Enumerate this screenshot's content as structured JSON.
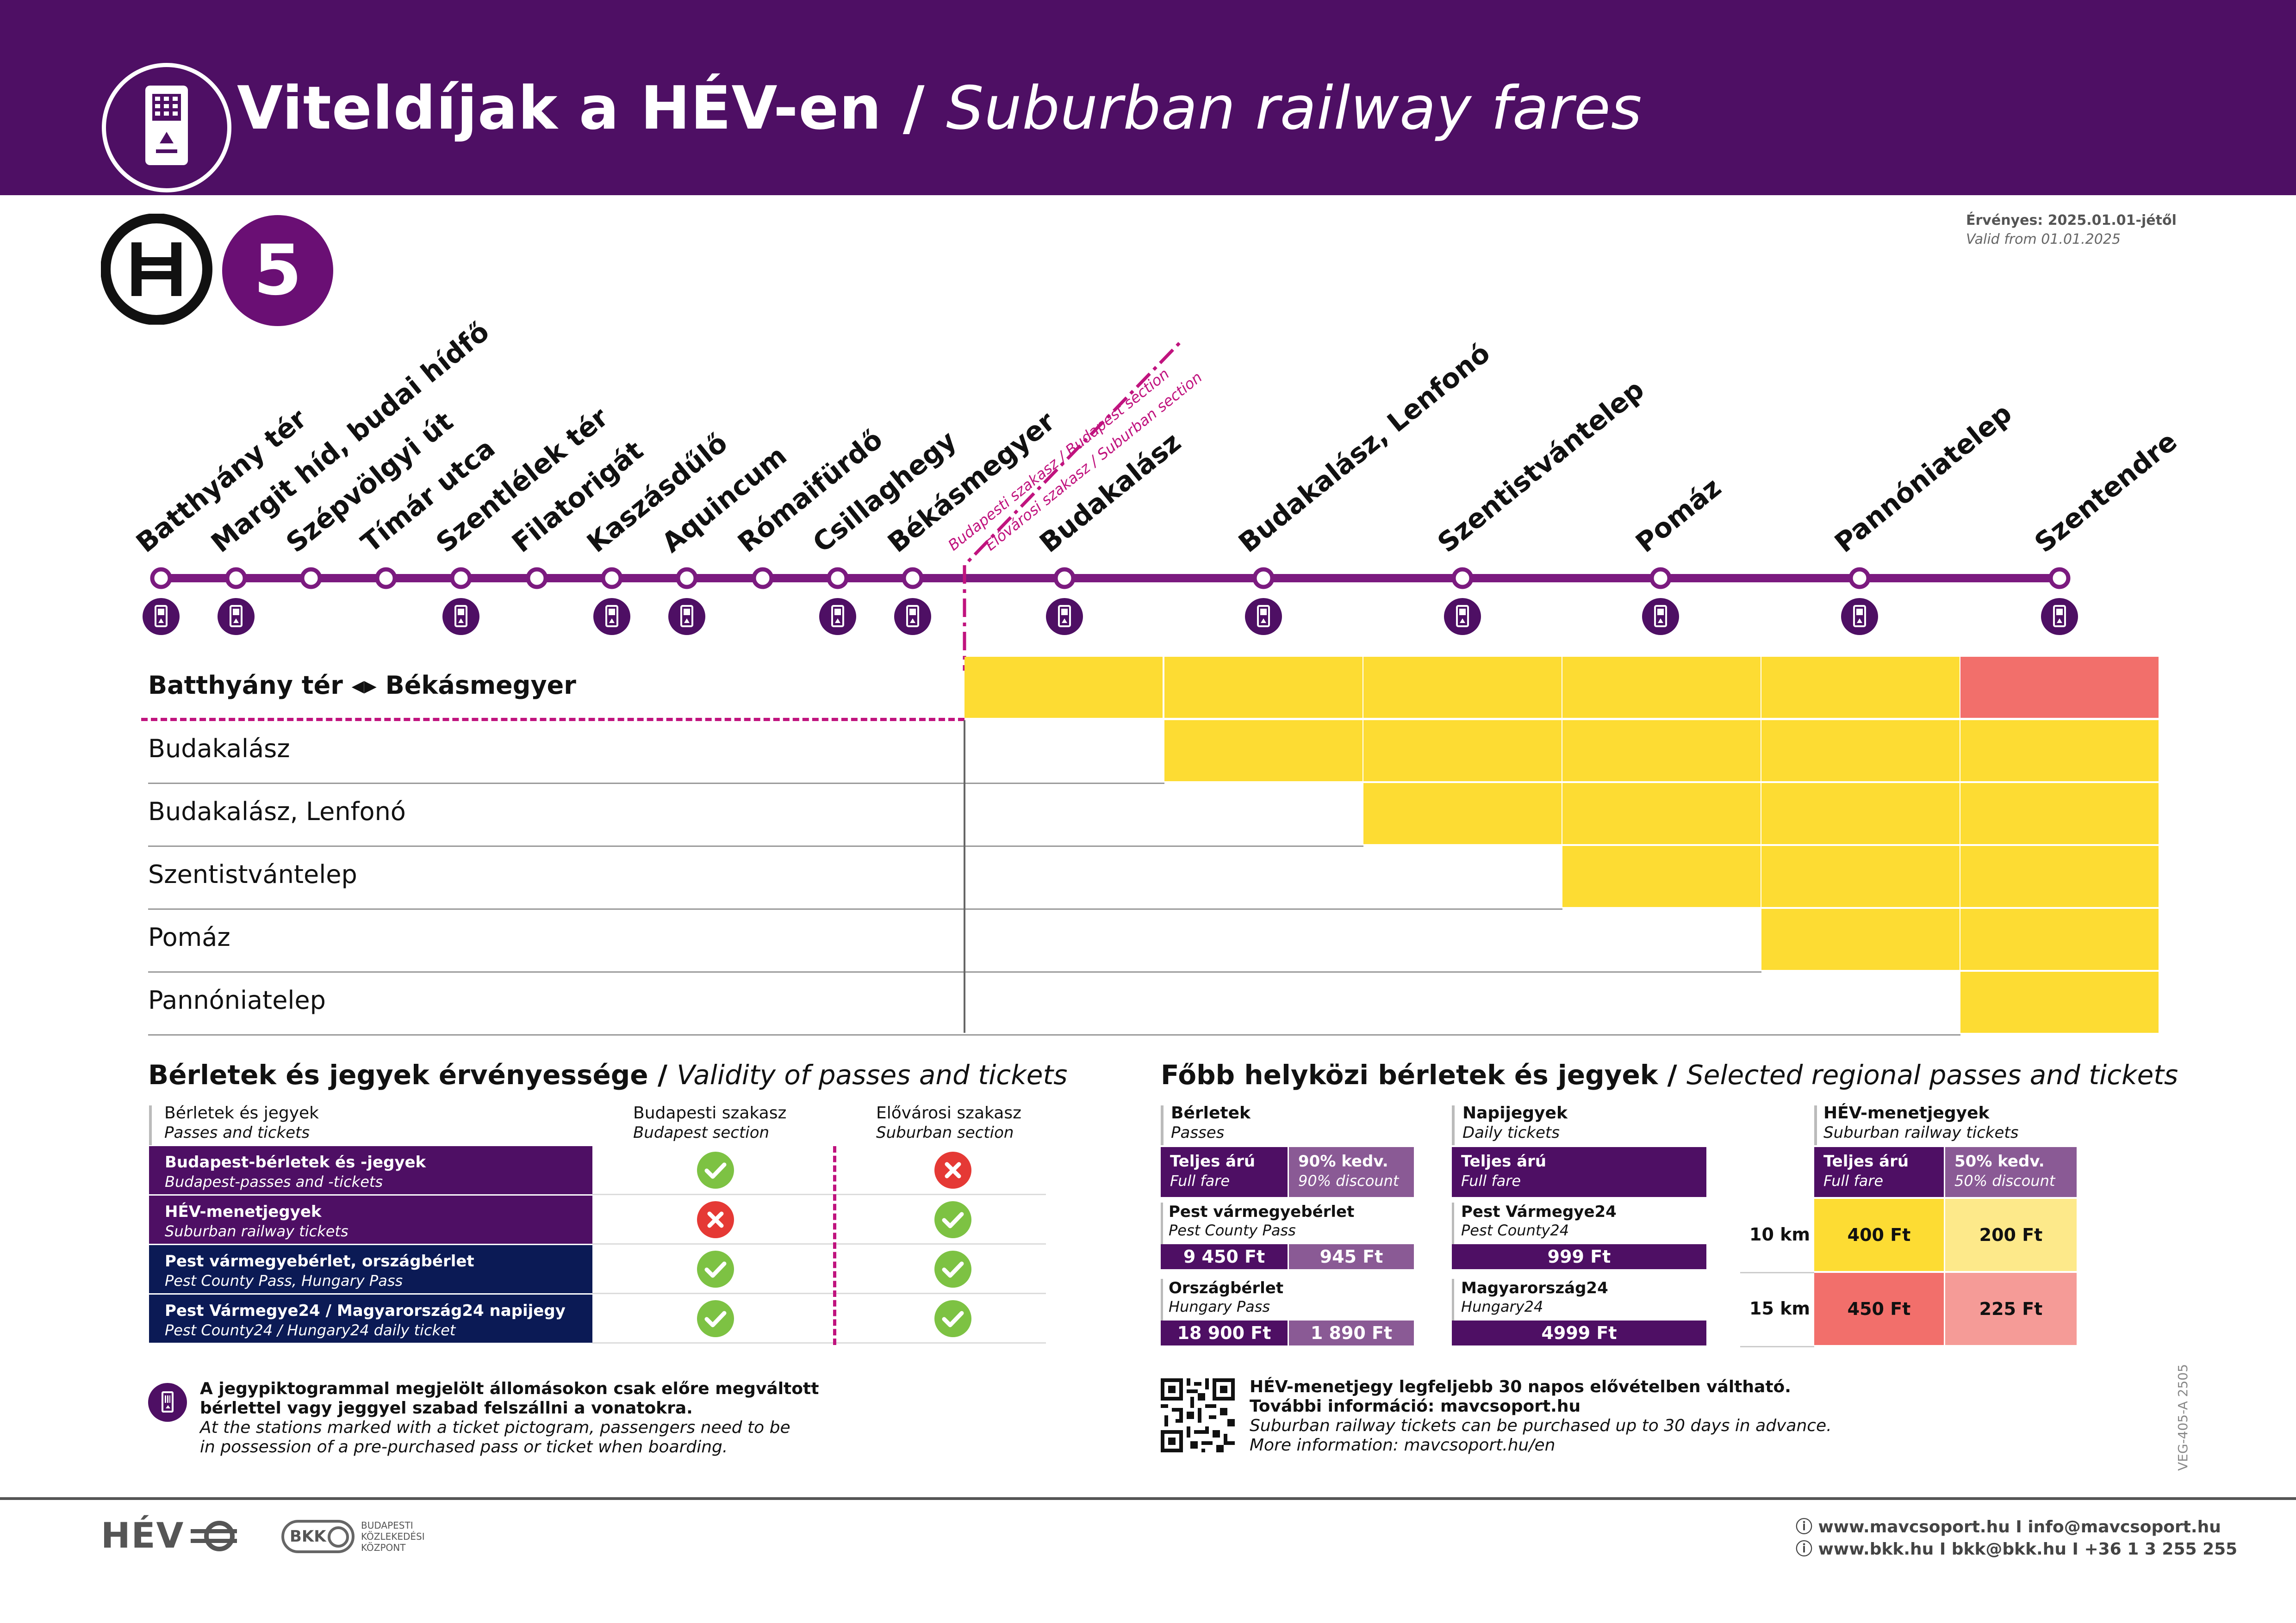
{
  "header": {
    "title_hu": "Viteldíjak a HÉV-en",
    "title_sep": " / ",
    "title_en": "Suburban railway fares",
    "icon": "ticket-machine-icon"
  },
  "line": {
    "badge": "5",
    "logo": "hev-h-logo"
  },
  "validity_date": {
    "hu": "Érvényes: 2025.01.01-jétől",
    "en": "Valid from 01.01.2025"
  },
  "stations": [
    {
      "name": "Batthyány tér",
      "ticket": true
    },
    {
      "name": "Margit híd, budai hídfő",
      "ticket": true
    },
    {
      "name": "Szépvölgyi út",
      "ticket": false
    },
    {
      "name": "Tímár utca",
      "ticket": false
    },
    {
      "name": "Szentlélek tér",
      "ticket": true
    },
    {
      "name": "Filatorigát",
      "ticket": false
    },
    {
      "name": "Kaszásdűlő",
      "ticket": true
    },
    {
      "name": "Aquincum",
      "ticket": true
    },
    {
      "name": "Rómaifürdő",
      "ticket": false
    },
    {
      "name": "Csillaghegy",
      "ticket": true
    },
    {
      "name": "Békásmegyer",
      "ticket": true
    },
    {
      "name": "Budakalász",
      "ticket": true
    },
    {
      "name": "Budakalász, Lenfonó",
      "ticket": true
    },
    {
      "name": "Szentistvántelep",
      "ticket": true
    },
    {
      "name": "Pomáz",
      "ticket": true
    },
    {
      "name": "Pannóniatelep",
      "ticket": true
    },
    {
      "name": "Szentendre",
      "ticket": true
    }
  ],
  "section_labels": {
    "budapest": "Budapesti szakasz / Budapest section",
    "suburban": "Elővárosi szakasz / Suburban section"
  },
  "fare_table": {
    "rows": [
      {
        "label_a": "Batthyány tér",
        "arrow": "◂▸",
        "label_b": "Békásmegyer",
        "bold": true,
        "cells": [
          "yellow",
          "yellow",
          "yellow",
          "yellow",
          "yellow",
          "red"
        ]
      },
      {
        "label_a": "Budakalász",
        "arrow": "",
        "label_b": "",
        "bold": false,
        "cells": [
          "none",
          "yellow",
          "yellow",
          "yellow",
          "yellow",
          "yellow"
        ]
      },
      {
        "label_a": "Budakalász, Lenfonó",
        "arrow": "",
        "label_b": "",
        "bold": false,
        "cells": [
          "none",
          "none",
          "yellow",
          "yellow",
          "yellow",
          "yellow"
        ]
      },
      {
        "label_a": "Szentistvántelep",
        "arrow": "",
        "label_b": "",
        "bold": false,
        "cells": [
          "none",
          "none",
          "none",
          "yellow",
          "yellow",
          "yellow"
        ]
      },
      {
        "label_a": "Pomáz",
        "arrow": "",
        "label_b": "",
        "bold": false,
        "cells": [
          "none",
          "none",
          "none",
          "none",
          "yellow",
          "yellow"
        ]
      },
      {
        "label_a": "Pannóniatelep",
        "arrow": "",
        "label_b": "",
        "bold": false,
        "cells": [
          "none",
          "none",
          "none",
          "none",
          "none",
          "yellow"
        ]
      }
    ],
    "colors": {
      "yellow": "#fddc33",
      "red": "#f26f6b"
    }
  },
  "validity": {
    "title_hu": "Bérletek és jegyek érvényessége",
    "title_en": "Validity of passes and tickets",
    "col_hdr": {
      "hu": "Bérletek és jegyek",
      "en": "Passes and tickets"
    },
    "col_bp": {
      "hu": "Budapesti szakasz",
      "en": "Budapest section"
    },
    "col_sub": {
      "hu": "Elővárosi szakasz",
      "en": "Suburban section"
    },
    "rows": [
      {
        "hu": "Budapest-bérletek és -jegyek",
        "en": "Budapest-passes and -tickets",
        "color": "#4e0f64",
        "bp": true,
        "sub": false
      },
      {
        "hu": "HÉV-menetjegyek",
        "en": "Suburban railway tickets",
        "color": "#4e0f64",
        "bp": false,
        "sub": true
      },
      {
        "hu": "Pest vármegyebérlet, országbérlet",
        "en": "Pest County Pass, Hungary Pass",
        "color": "#0b1a55",
        "bp": true,
        "sub": true
      },
      {
        "hu": "Pest Vármegye24 / Magyarország24 napijegy",
        "en": "Pest County24 / Hungary24 daily ticket",
        "color": "#0b1a55",
        "bp": true,
        "sub": true
      }
    ],
    "note": {
      "hu1": "A jegypiktogrammal megjelölt állomásokon csak előre megváltott",
      "hu2": "bérlettel vagy jeggyel szabad felszállni a vonatokra.",
      "en1": "At the stations marked with a ticket pictogram, passengers need to be",
      "en2": "in possession of a pre-purchased pass or ticket when boarding."
    }
  },
  "regional": {
    "title_hu": "Főbb helyközi bérletek és jegyek",
    "title_en": "Selected regional passes and tickets",
    "passes": {
      "hdr_hu": "Bérletek",
      "hdr_en": "Passes",
      "full_hu": "Teljes árú",
      "full_en": "Full fare",
      "disc_hu": "90% kedv.",
      "disc_en": "90% discount",
      "items": [
        {
          "hu": "Pest vármegyebérlet",
          "en": "Pest County Pass",
          "full": "9 450 Ft",
          "disc": "945 Ft"
        },
        {
          "hu": "Országbérlet",
          "en": "Hungary Pass",
          "full": "18 900 Ft",
          "disc": "1 890 Ft"
        }
      ]
    },
    "daily": {
      "hdr_hu": "Napijegyek",
      "hdr_en": "Daily tickets",
      "full_hu": "Teljes árú",
      "full_en": "Full fare",
      "items": [
        {
          "hu": "Pest Vármegye24",
          "en": "Pest County24",
          "price": "999 Ft"
        },
        {
          "hu": "Magyarország24",
          "en": "Hungary24",
          "price": "4999 Ft"
        }
      ]
    },
    "hev": {
      "hdr_hu": "HÉV-menetjegyek",
      "hdr_en": "Suburban railway tickets",
      "full_hu": "Teljes árú",
      "full_en": "Full fare",
      "disc_hu": "50% kedv.",
      "disc_en": "50% discount",
      "rows": [
        {
          "km": "10 km",
          "full": "400 Ft",
          "disc": "200 Ft",
          "c1": "#fddc33",
          "c2": "#fde98a"
        },
        {
          "km": "15 km",
          "full": "450 Ft",
          "disc": "225 Ft",
          "c1": "#f26f6b",
          "c2": "#f59b97"
        }
      ]
    },
    "info": {
      "hu1": "HÉV-menetjegy legfeljebb 30 napos elővételben váltható.",
      "hu2": "További információ: mavcsoport.hu",
      "en1": "Suburban railway tickets can be purchased up to 30 days in advance.",
      "en2": "More information: mavcsoport.hu/en"
    }
  },
  "doc_code": "VEG-405-A 2505",
  "footer": {
    "hev_logo": "HÉV",
    "bkk_logo": "BKK",
    "bkk_text1": "BUDAPESTI",
    "bkk_text2": "KÖZLEKEDÉSI",
    "bkk_text3": "KÖZPONT",
    "contact1": "www.mavcsoport.hu I info@mavcsoport.hu",
    "contact2": "www.bkk.hu I bkk@bkk.hu I +36 1 3 255 255"
  }
}
